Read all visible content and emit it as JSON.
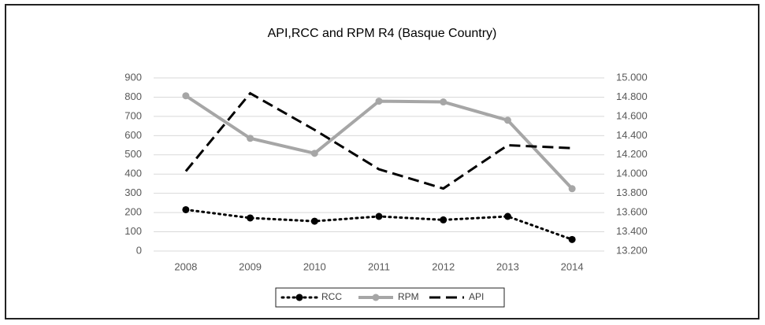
{
  "chart_data": {
    "type": "line",
    "title": "API,RCC and RPM R4 (Basque Country)",
    "categories": [
      "2008",
      "2009",
      "2010",
      "2011",
      "2012",
      "2013",
      "2014"
    ],
    "series": [
      {
        "name": "RCC",
        "color": "#000000",
        "dash": "dotted",
        "marker": true,
        "axis": "y",
        "values": [
          215,
          172,
          155,
          180,
          162,
          180,
          60
        ]
      },
      {
        "name": "RPM",
        "color": "#a6a6a6",
        "dash": "solid",
        "marker": true,
        "axis": "y",
        "values": [
          807,
          586,
          508,
          779,
          775,
          680,
          324
        ]
      },
      {
        "name": "API",
        "color": "#000000",
        "dash": "dashed",
        "marker": false,
        "axis": "y2",
        "values": [
          14.03,
          14.84,
          14.46,
          14.05,
          13.85,
          14.3,
          14.27
        ]
      }
    ],
    "ylim": [
      0,
      900
    ],
    "yticks": [
      0,
      100,
      200,
      300,
      400,
      500,
      600,
      700,
      800,
      900
    ],
    "y2lim": [
      13.2,
      15.0
    ],
    "y2ticks": [
      {
        "value": 13.2,
        "label": "13.200"
      },
      {
        "value": 13.4,
        "label": "13.400"
      },
      {
        "value": 13.6,
        "label": "13.600"
      },
      {
        "value": 13.8,
        "label": "13.800"
      },
      {
        "value": 14.0,
        "label": "14.000"
      },
      {
        "value": 14.2,
        "label": "14.200"
      },
      {
        "value": 14.4,
        "label": "14.400"
      },
      {
        "value": 14.6,
        "label": "14.600"
      },
      {
        "value": 14.8,
        "label": "14.800"
      },
      {
        "value": 15.0,
        "label": "15.000"
      }
    ],
    "grid": true,
    "legend": "bottom"
  }
}
